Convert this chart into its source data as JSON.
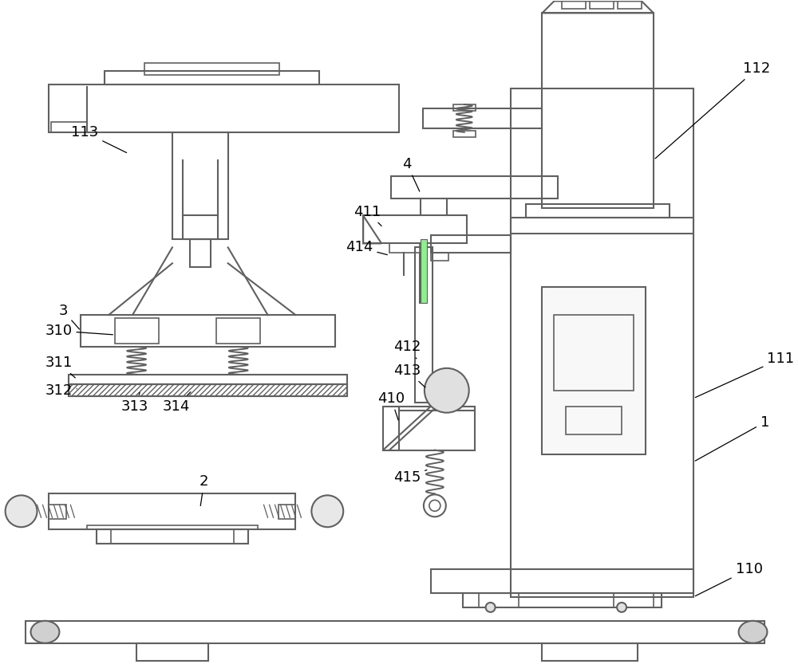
{
  "bg_color": "#ffffff",
  "line_color": "#606060",
  "line_width": 1.5,
  "fontsize": 13
}
